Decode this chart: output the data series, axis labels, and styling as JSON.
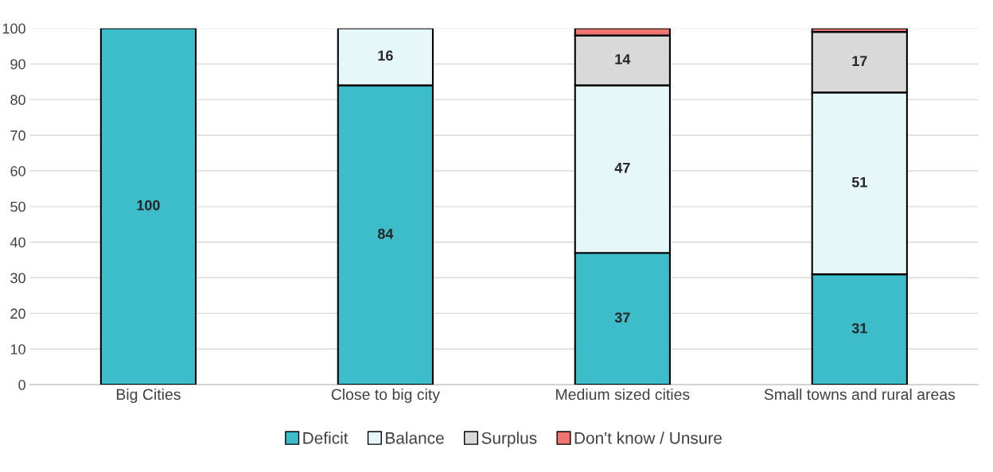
{
  "chart_data": {
    "type": "bar",
    "stacked": true,
    "categories": [
      "Big Cities",
      "Close to big city",
      "Medium sized cities",
      "Small towns and rural areas"
    ],
    "series": [
      {
        "name": "Deficit",
        "color": "#3dbdca",
        "values": [
          100,
          84,
          37,
          31
        ],
        "value_labels": [
          "100",
          "84",
          "37",
          "31"
        ]
      },
      {
        "name": "Balance",
        "color": "#e6f7fa",
        "values": [
          null,
          16,
          47,
          51
        ],
        "value_labels": [
          null,
          "16",
          "47",
          "51"
        ]
      },
      {
        "name": "Surplus",
        "color": "#d9d9d9",
        "values": [
          null,
          null,
          14,
          17
        ],
        "value_labels": [
          null,
          null,
          "14",
          "17"
        ]
      },
      {
        "name": "Don't know / Unsure",
        "color": "#f07470",
        "values": [
          null,
          null,
          2,
          1
        ],
        "value_labels": [
          null,
          null,
          null,
          null
        ]
      }
    ],
    "ylim": [
      0,
      100
    ],
    "yticks": [
      0,
      10,
      20,
      30,
      40,
      50,
      60,
      70,
      80,
      90,
      100
    ],
    "grid": "y",
    "legend": "bottom"
  }
}
